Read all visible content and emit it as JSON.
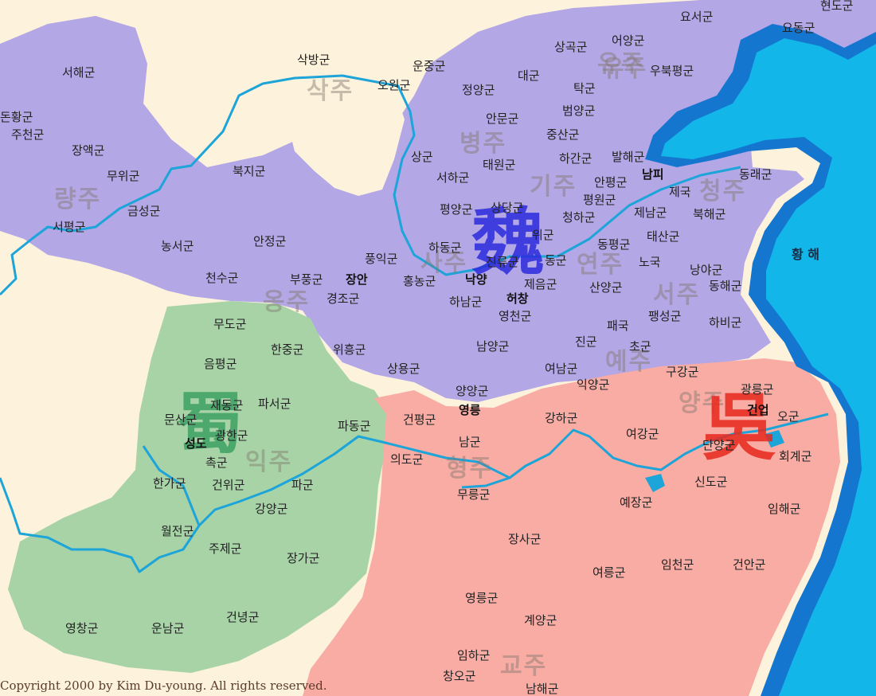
{
  "sea": {
    "label": "황 해"
  },
  "copyright": "Copyright 2000 by Kim Du-young. All rights reserved.",
  "kingdoms": [
    {
      "id": "wei",
      "char": "魏",
      "color": "#2b2bdc"
    },
    {
      "id": "shu",
      "char": "蜀",
      "color": "#2e9a5a"
    },
    {
      "id": "wu",
      "char": "吳",
      "color": "#e8281e"
    }
  ],
  "colors": {
    "wei": "#b3a7e6",
    "shu": "#a7d3a7",
    "wu": "#f8aca4",
    "land": "#fdf3dc",
    "sea": "#12b6e8",
    "sea_edge": "#1576d0",
    "river": "#1da4d8"
  },
  "provinces": [
    "삭주",
    "유주",
    "병주",
    "기주",
    "청주",
    "량주",
    "사주",
    "연주",
    "옹주",
    "서주",
    "예주",
    "양주",
    "익주",
    "형주",
    "교주"
  ],
  "commanderies": [
    "요서군",
    "현도군",
    "요동군",
    "상곡군",
    "어양군",
    "유주",
    "우북평군",
    "삭방군",
    "운중군",
    "대군",
    "서해군",
    "오원군",
    "정양군",
    "탁군",
    "돈황군",
    "범양군",
    "안문군",
    "주천군",
    "중산군",
    "장액군",
    "상군",
    "하간군",
    "발해군",
    "태원군",
    "무위군",
    "북지군",
    "서하군",
    "안평군",
    "남피",
    "동래군",
    "평원군",
    "제국",
    "금성군",
    "평양군",
    "상당군",
    "청하군",
    "제남군",
    "북해군",
    "서평군",
    "위군",
    "농서군",
    "안정군",
    "동평군",
    "태산군",
    "하동군",
    "풍익군",
    "진류군",
    "동군",
    "노국",
    "낭야군",
    "천수군",
    "부풍군",
    "장안",
    "홍농군",
    "낙양",
    "제음군",
    "동해군",
    "경조군",
    "하남군",
    "허창",
    "산양군",
    "하비군",
    "영천군",
    "팽성군",
    "무도군",
    "한중군",
    "위흥군",
    "진군",
    "패국",
    "초군",
    "남양군",
    "음평군",
    "상용군",
    "여남군",
    "구강군",
    "익양군",
    "양양군",
    "광릉군",
    "재동군",
    "파서군",
    "영릉",
    "건업",
    "문산군",
    "광한군",
    "건평군",
    "파동군",
    "강하군",
    "오군",
    "성도",
    "여강군",
    "단양군",
    "촉군",
    "남군",
    "회계군",
    "의도군",
    "한가군",
    "건위군",
    "파군",
    "신도군",
    "무릉군",
    "예장군",
    "임해군",
    "강양군",
    "월전군",
    "주제군",
    "장사군",
    "장가군",
    "여릉군",
    "임천군",
    "건안군",
    "영릉군",
    "영창군",
    "운남군",
    "건녕군",
    "계양군",
    "임하군",
    "창오군",
    "남해군"
  ]
}
